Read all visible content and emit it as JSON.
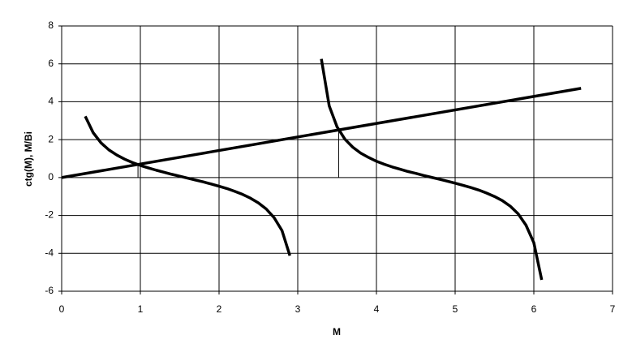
{
  "chart_data": {
    "type": "line",
    "xlabel": "M",
    "ylabel": "ctg(M), M/Bi",
    "xlim": [
      0,
      7
    ],
    "xticks": [
      0,
      1,
      2,
      3,
      4,
      5,
      6,
      7
    ],
    "ylim": [
      -6,
      8
    ],
    "yticks": [
      -6,
      -4,
      -2,
      0,
      2,
      4,
      6,
      8
    ],
    "grid": true,
    "series": [
      {
        "color": "#000000",
        "x": [
          0,
          6.6
        ],
        "values": [
          0,
          4.71
        ]
      },
      {
        "color": "#000000",
        "x": [
          0.3,
          0.4,
          0.5,
          0.6,
          0.7,
          0.8,
          0.9,
          1.0,
          1.1,
          1.2,
          1.3,
          1.4,
          1.5,
          1.6,
          1.7,
          1.8,
          1.9,
          2.0,
          2.1,
          2.2,
          2.3,
          2.4,
          2.5,
          2.6,
          2.7,
          2.8,
          2.9
        ],
        "values": [
          3.23,
          2.37,
          1.83,
          1.46,
          1.19,
          0.97,
          0.79,
          0.64,
          0.51,
          0.39,
          0.28,
          0.17,
          0.07,
          -0.03,
          -0.13,
          -0.23,
          -0.34,
          -0.46,
          -0.58,
          -0.73,
          -0.89,
          -1.09,
          -1.34,
          -1.66,
          -2.12,
          -2.8,
          -4.12
        ]
      },
      {
        "color": "#000000",
        "x": [
          3.3,
          3.4,
          3.5,
          3.6,
          3.7,
          3.8,
          3.9,
          4.0,
          4.1,
          4.2,
          4.3,
          4.4,
          4.5,
          4.6,
          4.7,
          4.8,
          4.9,
          5.0,
          5.1,
          5.2,
          5.3,
          5.4,
          5.5,
          5.6,
          5.7,
          5.8,
          5.9,
          6.0,
          6.1
        ],
        "values": [
          6.26,
          3.78,
          2.67,
          2.02,
          1.6,
          1.29,
          1.06,
          0.86,
          0.7,
          0.56,
          0.44,
          0.32,
          0.22,
          0.11,
          0.01,
          -0.09,
          -0.19,
          -0.3,
          -0.41,
          -0.53,
          -0.66,
          -0.82,
          -1.0,
          -1.22,
          -1.51,
          -1.91,
          -2.51,
          -3.44,
          -5.4
        ]
      }
    ],
    "drop_lines": [
      {
        "color": "#000000",
        "x": [
          0.97,
          0.97
        ],
        "values": [
          0.69,
          0
        ]
      },
      {
        "color": "#000000",
        "x": [
          3.52,
          3.52
        ],
        "values": [
          2.51,
          0
        ]
      }
    ]
  }
}
